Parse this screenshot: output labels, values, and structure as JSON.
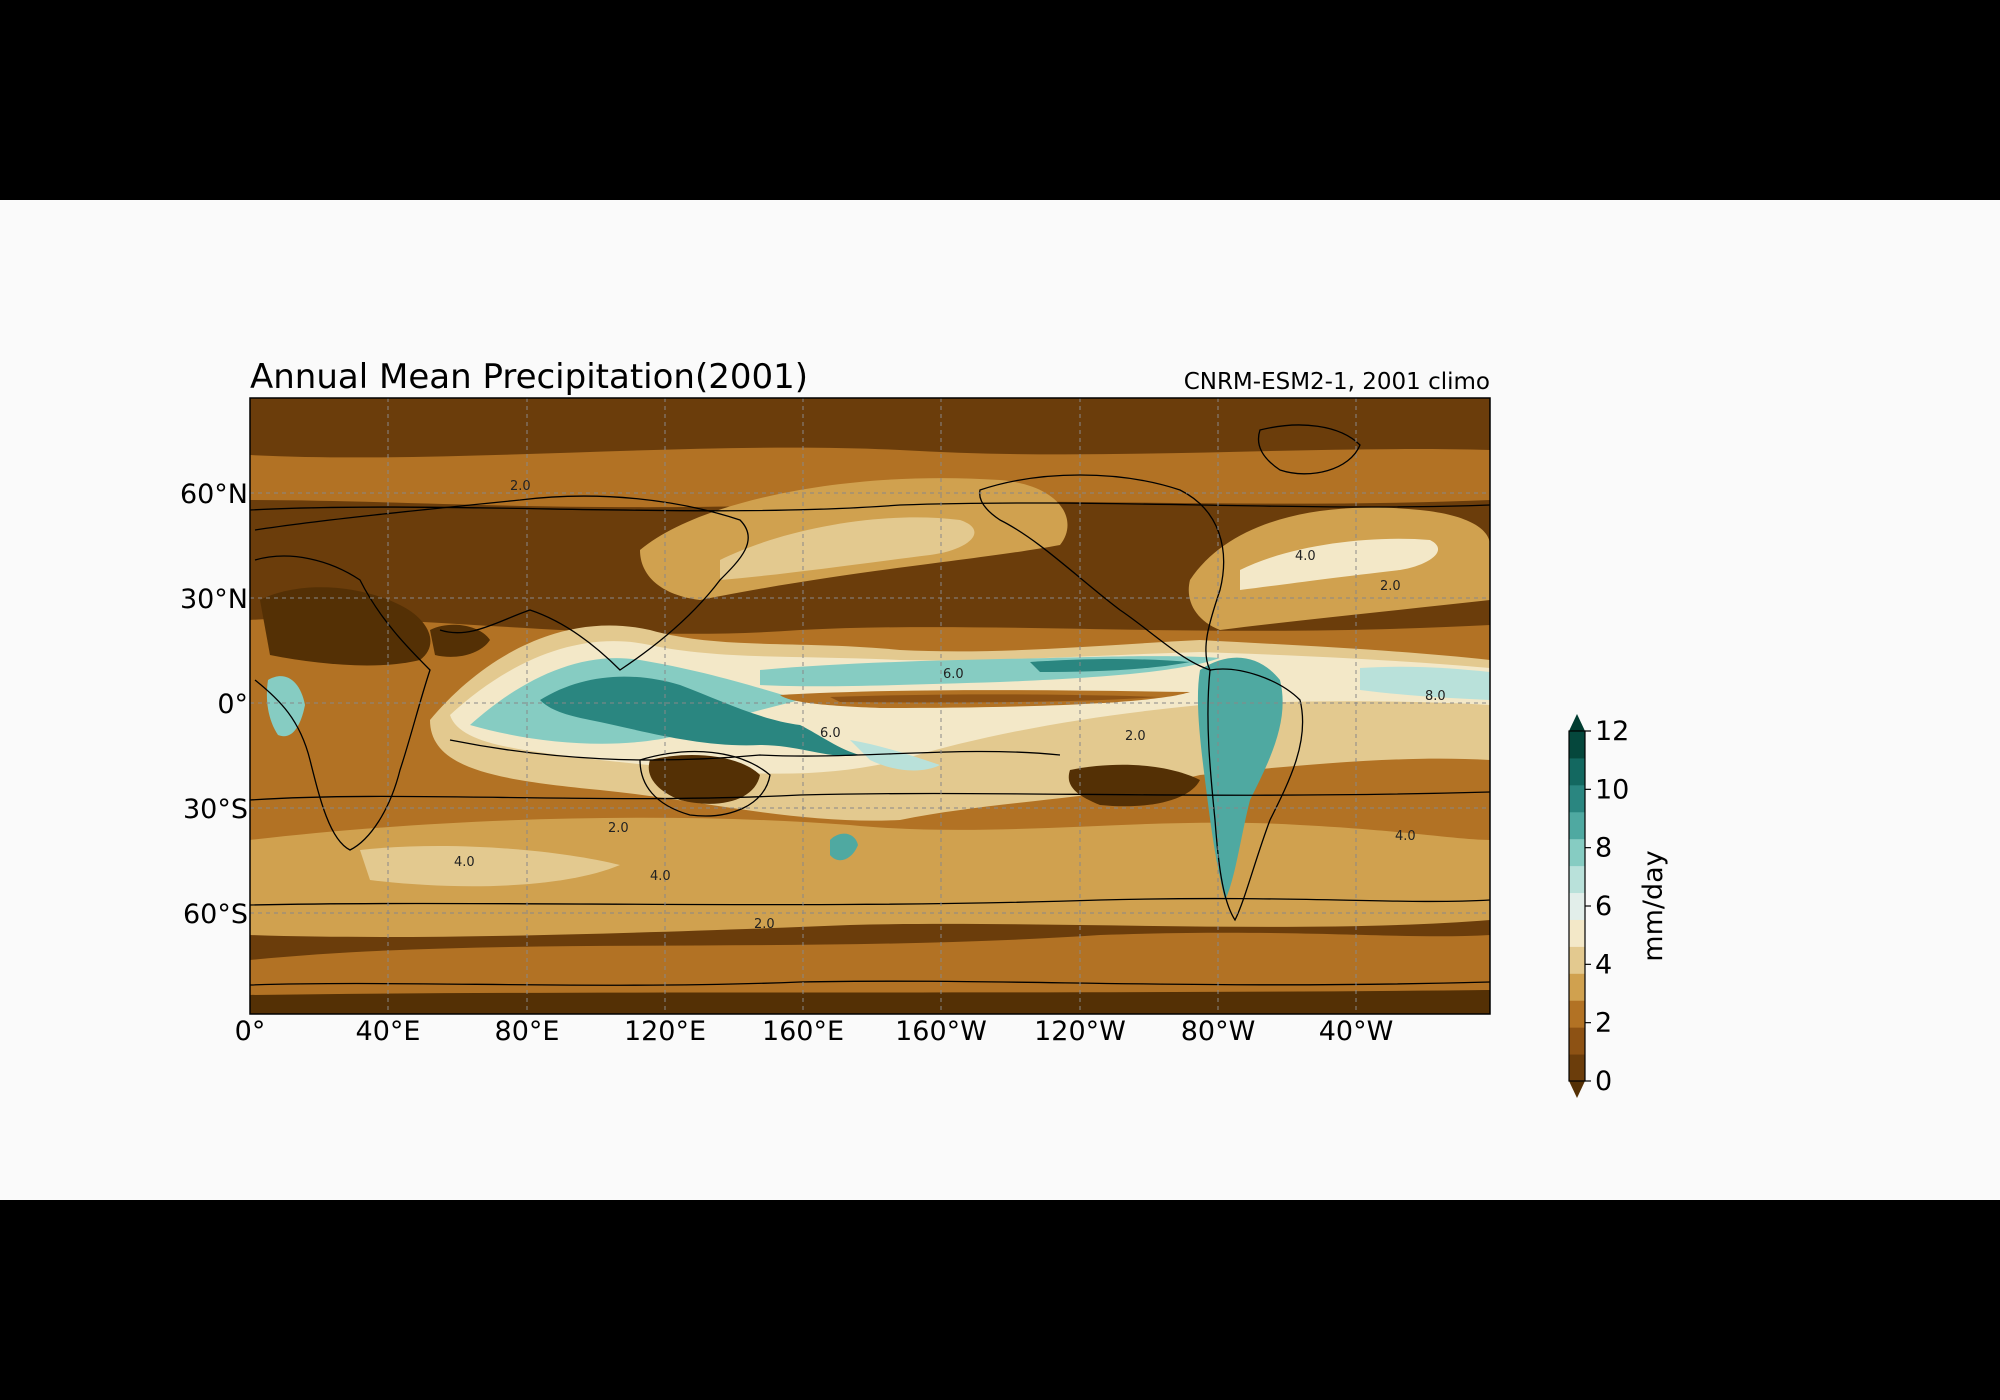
{
  "chart_data": {
    "type": "heatmap",
    "title": "Annual Mean Precipitation(2001)",
    "subtitle": "CNRM-ESM2-1, 2001 climo",
    "projection": "PlateCarree, central_longitude 180 offset (0° at left edge)",
    "x_ticks": [
      "0°",
      "40°E",
      "80°E",
      "120°E",
      "160°E",
      "160°W",
      "120°W",
      "80°W",
      "40°W"
    ],
    "y_ticks": [
      "60°N",
      "30°N",
      "0°",
      "30°S",
      "60°S"
    ],
    "lon_range": [
      0,
      360
    ],
    "lat_range": [
      -90,
      90
    ],
    "gridlines": true,
    "colorbar": {
      "label": "mm/day",
      "ticks": [
        "0",
        "2",
        "4",
        "6",
        "8",
        "10",
        "12"
      ],
      "vmin": 0,
      "vmax": 12,
      "extend": "both",
      "levels": [
        0,
        1,
        2,
        3,
        4,
        5,
        6,
        7,
        8,
        9,
        10,
        11,
        12
      ],
      "colors": [
        "#6b3d0b",
        "#8d5214",
        "#b27224",
        "#d0a14f",
        "#e3c98f",
        "#f3e8c8",
        "#e2eeea",
        "#b9e1da",
        "#86ccc2",
        "#4fa9a1",
        "#2a8680",
        "#136860",
        "#05473c"
      ],
      "under_color": "#543005",
      "over_color": "#003c30"
    },
    "contour_labels": [
      "2.0",
      "4.0",
      "6.0",
      "8.0"
    ]
  }
}
